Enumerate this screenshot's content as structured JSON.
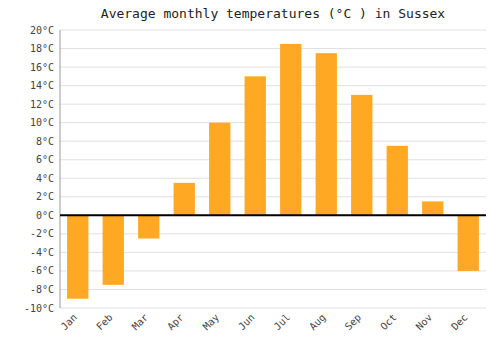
{
  "chart_data": {
    "type": "bar",
    "title": "Average monthly temperatures (°C ) in Sussex",
    "categories": [
      "Jan",
      "Feb",
      "Mar",
      "Apr",
      "May",
      "Jun",
      "Jul",
      "Aug",
      "Sep",
      "Oct",
      "Nov",
      "Dec"
    ],
    "values": [
      -9.0,
      -7.5,
      -2.5,
      3.5,
      10.0,
      15.0,
      18.5,
      17.5,
      13.0,
      7.5,
      1.5,
      -6.0
    ],
    "color": "#FFA824",
    "ylim": [
      -10,
      20
    ],
    "yticks": [
      {
        "value": -10,
        "label": "-10°C"
      },
      {
        "value": -8,
        "label": "-8°C"
      },
      {
        "value": -6,
        "label": "-6°C"
      },
      {
        "value": -4,
        "label": "-4°C"
      },
      {
        "value": -2,
        "label": "-2°C"
      },
      {
        "value": 0,
        "label": "0°C"
      },
      {
        "value": 2,
        "label": "2°C"
      },
      {
        "value": 4,
        "label": "4°C"
      },
      {
        "value": 6,
        "label": "6°C"
      },
      {
        "value": 8,
        "label": "8°C"
      },
      {
        "value": 10,
        "label": "10°C"
      },
      {
        "value": 12,
        "label": "12°C"
      },
      {
        "value": 14,
        "label": "14°C"
      },
      {
        "value": 16,
        "label": "16°C"
      },
      {
        "value": 18,
        "label": "18°C"
      },
      {
        "value": 20,
        "label": "20°C"
      }
    ],
    "grid": true
  }
}
